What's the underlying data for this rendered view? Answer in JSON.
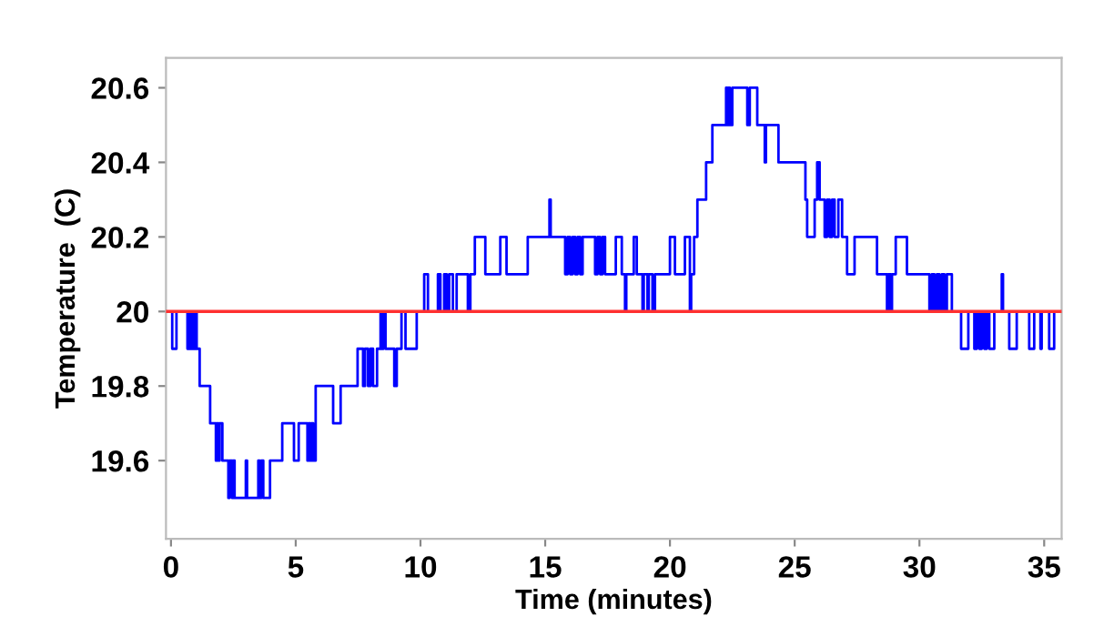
{
  "chart_data": {
    "type": "step",
    "xlabel": "Time (minutes)",
    "ylabel": "Temperature  (C)",
    "xlim": [
      -0.2,
      35.7
    ],
    "ylim": [
      19.39,
      20.68
    ],
    "xticks": [
      0,
      5,
      10,
      15,
      20,
      25,
      30,
      35
    ],
    "yticks": [
      19.6,
      19.8,
      20,
      20.2,
      20.4,
      20.6
    ],
    "grid": false,
    "legend": false,
    "ref_lines": [
      {
        "axis": "y",
        "value": 20,
        "color": "#ff3030"
      }
    ],
    "series": [
      {
        "color": "#0000ff",
        "x": [
          0,
          0.05,
          0.22,
          0.66,
          0.72,
          0.78,
          0.85,
          0.92,
          0.97,
          1.03,
          1.15,
          1.57,
          1.8,
          1.85,
          1.9,
          1.95,
          2.06,
          2.3,
          2.35,
          2.45,
          2.5,
          2.55,
          3.0,
          3.05,
          3.5,
          3.55,
          3.62,
          3.7,
          3.97,
          4.46,
          4.93,
          5.12,
          5.47,
          5.52,
          5.58,
          5.63,
          5.7,
          5.8,
          6.5,
          6.8,
          7.48,
          7.7,
          7.78,
          7.9,
          8.0,
          8.1,
          8.26,
          8.4,
          8.45,
          8.52,
          8.6,
          8.95,
          9.05,
          9.24,
          9.4,
          9.85,
          10.15,
          10.3,
          10.7,
          10.8,
          10.95,
          11.05,
          11.15,
          11.3,
          11.45,
          11.9,
          12.0,
          12.18,
          12.6,
          13.2,
          13.45,
          14.3,
          15.17,
          15.22,
          15.8,
          15.9,
          16.0,
          16.1,
          16.2,
          16.3,
          16.4,
          16.5,
          17.0,
          17.1,
          17.2,
          17.3,
          17.4,
          17.83,
          18.07,
          18.2,
          18.25,
          18.55,
          18.67,
          18.9,
          18.95,
          19.1,
          19.15,
          19.3,
          19.4,
          20.0,
          20.2,
          20.6,
          20.8,
          20.85,
          20.97,
          21.1,
          21.45,
          21.7,
          22.25,
          22.3,
          22.35,
          22.4,
          22.5,
          23.1,
          23.2,
          23.5,
          23.8,
          23.85,
          24.35,
          25.43,
          25.5,
          25.8,
          25.9,
          26.0,
          26.2,
          26.3,
          26.4,
          26.5,
          26.6,
          26.75,
          26.9,
          27.1,
          27.4,
          28.3,
          28.7,
          28.75,
          28.85,
          28.9,
          29.05,
          29.5,
          30.4,
          30.5,
          30.6,
          30.7,
          30.8,
          30.9,
          31.0,
          31.1,
          31.3,
          31.67,
          31.96,
          32.2,
          32.3,
          32.4,
          32.5,
          32.6,
          32.7,
          32.8,
          33.0,
          33.3,
          33.35,
          33.6,
          33.9,
          34.4,
          34.6,
          34.85,
          34.9,
          35.2,
          35.4
        ],
        "values": [
          20,
          19.9,
          20,
          19.9,
          20,
          19.9,
          20,
          19.9,
          20,
          19.9,
          19.8,
          19.7,
          19.6,
          19.7,
          19.6,
          19.7,
          19.6,
          19.5,
          19.6,
          19.5,
          19.6,
          19.5,
          19.6,
          19.5,
          19.6,
          19.5,
          19.6,
          19.5,
          19.6,
          19.7,
          19.6,
          19.7,
          19.6,
          19.7,
          19.6,
          19.7,
          19.6,
          19.8,
          19.7,
          19.8,
          19.9,
          19.8,
          19.9,
          19.8,
          19.9,
          19.8,
          19.9,
          20,
          19.9,
          20,
          19.9,
          19.8,
          19.9,
          20,
          19.9,
          20,
          20.1,
          20,
          20.1,
          20,
          20.1,
          20,
          20.1,
          20,
          20.1,
          20,
          20.1,
          20.2,
          20.1,
          20.2,
          20.1,
          20.2,
          20.3,
          20.2,
          20.1,
          20.2,
          20.1,
          20.2,
          20.1,
          20.2,
          20.1,
          20.2,
          20.1,
          20.2,
          20.1,
          20.2,
          20.1,
          20.2,
          20.1,
          20.0,
          20.1,
          20.2,
          20.1,
          20,
          20.1,
          20,
          20.1,
          20,
          20.1,
          20.2,
          20.1,
          20.2,
          20.0,
          20.1,
          20.2,
          20.3,
          20.4,
          20.5,
          20.6,
          20.5,
          20.6,
          20.5,
          20.6,
          20.5,
          20.6,
          20.5,
          20.4,
          20.5,
          20.4,
          20.3,
          20.2,
          20.3,
          20.4,
          20.3,
          20.2,
          20.3,
          20.2,
          20.3,
          20.2,
          20.3,
          20.2,
          20.1,
          20.2,
          20.1,
          20,
          20.1,
          20,
          20.1,
          20.2,
          20.1,
          20,
          20.1,
          20,
          20.1,
          20,
          20.1,
          20,
          20.1,
          20.0,
          19.9,
          20,
          19.9,
          20,
          19.9,
          20,
          19.9,
          20,
          19.9,
          20,
          20.1,
          20,
          19.9,
          20,
          19.9,
          20,
          19.9,
          20,
          19.9,
          20
        ]
      }
    ]
  }
}
